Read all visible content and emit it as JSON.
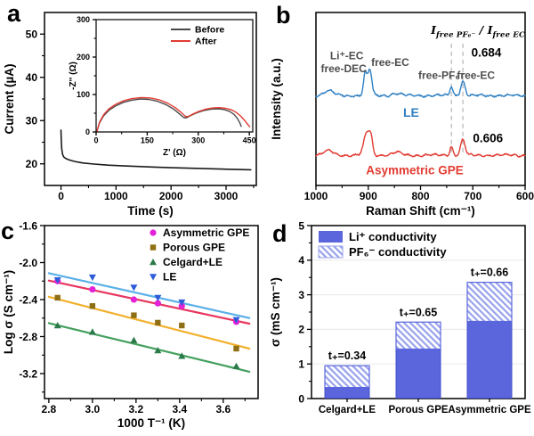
{
  "panels": {
    "a": {
      "letter": "a"
    },
    "b": {
      "letter": "b"
    },
    "c": {
      "letter": "c"
    },
    "d": {
      "letter": "d"
    }
  },
  "formula": {
    "i1": "I",
    "sub1": "free PF₆⁻",
    "sep": " / ",
    "i2": "I",
    "sub2": "free EC"
  },
  "colors": {
    "black_curve": "#1a1a1a",
    "before_gray": "#4a4a4a",
    "after_red": "#e23b32",
    "le_blue": "#2e7fc2",
    "gpe_red": "#e23b32",
    "bar_blue": "#5b66dd",
    "bar_edge": "#4450cc",
    "hatch_blue": "#98a2ec",
    "guide_gray": "#b5b5b5"
  },
  "chart_data": [
    {
      "id": "a",
      "type": "line",
      "xlabel": "Time (s)",
      "ylabel": "Current (µA)",
      "xlim": [
        -300,
        3550
      ],
      "ylim": [
        15,
        55
      ],
      "xticks": [
        "0",
        "1000",
        "2000",
        "3000"
      ],
      "xminor": [
        500,
        1500,
        2500,
        3500
      ],
      "yticks": [
        "20",
        "30",
        "40",
        "50"
      ],
      "yminor": [
        25,
        35,
        45
      ],
      "grid": false,
      "series": [
        {
          "name": "current",
          "color": "#1a1a1a",
          "points": [
            [
              0,
              27.8
            ],
            [
              6,
              25.2
            ],
            [
              14,
              23.4
            ],
            [
              28,
              22.2
            ],
            [
              50,
              21.6
            ],
            [
              90,
              21.2
            ],
            [
              150,
              20.9
            ],
            [
              250,
              20.55
            ],
            [
              400,
              20.2
            ],
            [
              600,
              19.95
            ],
            [
              850,
              19.7
            ],
            [
              1100,
              19.55
            ],
            [
              1400,
              19.4
            ],
            [
              1700,
              19.25
            ],
            [
              2000,
              19.1
            ],
            [
              2300,
              19.0
            ],
            [
              2600,
              18.9
            ],
            [
              2900,
              18.8
            ],
            [
              3200,
              18.7
            ],
            [
              3450,
              18.62
            ]
          ]
        }
      ]
    },
    {
      "id": "a_inset",
      "type": "line",
      "xlabel": "Z' (Ω)",
      "ylabel": "-Z'' (Ω)",
      "xlim": [
        0,
        460
      ],
      "ylim": [
        0,
        300
      ],
      "xticks": [
        "0",
        "150",
        "300",
        "450"
      ],
      "xminor": [
        75,
        225,
        375
      ],
      "yticks": [
        "0",
        "100",
        "200",
        "300"
      ],
      "yminor": [
        50,
        150,
        250
      ],
      "legend": [
        "Before",
        "After"
      ],
      "series": [
        {
          "name": "Before",
          "color": "#4a4a4a",
          "points": [
            [
              3,
              3
            ],
            [
              10,
              24
            ],
            [
              22,
              43
            ],
            [
              38,
              58
            ],
            [
              58,
              70
            ],
            [
              80,
              79
            ],
            [
              105,
              85
            ],
            [
              130,
              88
            ],
            [
              155,
              87
            ],
            [
              180,
              82
            ],
            [
              205,
              73
            ],
            [
              228,
              61
            ],
            [
              245,
              48
            ],
            [
              258,
              38
            ],
            [
              266,
              38
            ],
            [
              278,
              44
            ],
            [
              295,
              51
            ],
            [
              315,
              57
            ],
            [
              338,
              61
            ],
            [
              358,
              62
            ],
            [
              375,
              60
            ],
            [
              392,
              55
            ],
            [
              405,
              47
            ],
            [
              415,
              36
            ],
            [
              422,
              24
            ],
            [
              426,
              15
            ]
          ]
        },
        {
          "name": "After",
          "color": "#e23b32",
          "points": [
            [
              3,
              3
            ],
            [
              10,
              26
            ],
            [
              22,
              46
            ],
            [
              38,
              62
            ],
            [
              58,
              74
            ],
            [
              80,
              83
            ],
            [
              105,
              89
            ],
            [
              132,
              92
            ],
            [
              158,
              91
            ],
            [
              185,
              86
            ],
            [
              210,
              77
            ],
            [
              232,
              65
            ],
            [
              250,
              52
            ],
            [
              263,
              41
            ],
            [
              272,
              42
            ],
            [
              285,
              48
            ],
            [
              302,
              55
            ],
            [
              322,
              61
            ],
            [
              342,
              64
            ],
            [
              362,
              65
            ],
            [
              380,
              63
            ],
            [
              398,
              59
            ],
            [
              412,
              52
            ],
            [
              425,
              42
            ],
            [
              437,
              30
            ],
            [
              447,
              18
            ],
            [
              451,
              14
            ]
          ]
        }
      ]
    },
    {
      "id": "b",
      "type": "spectra",
      "xlabel": "Raman Shift (cm⁻¹)",
      "ylabel": "Intensity (a.u.)",
      "xlim": [
        1000,
        600
      ],
      "ylim": [
        0,
        1
      ],
      "xticks": [
        "1000",
        "900",
        "800",
        "700",
        "600"
      ],
      "xminor": [
        950,
        850,
        750,
        650
      ],
      "yticks": [],
      "yminor": [],
      "dashed_x": [
        741,
        719
      ],
      "series": [
        {
          "name": "LE",
          "color": "#2e7fc2",
          "baseline": 0.52,
          "noise": 0.012,
          "peaks": [
            [
              976,
              9,
              0.028
            ],
            [
              906,
              3.2,
              0.125
            ],
            [
              897,
              3.8,
              0.15
            ],
            [
              846,
              8,
              0.012
            ],
            [
              741,
              2.8,
              0.053
            ],
            [
              719,
              4.2,
              0.082
            ]
          ],
          "ratio_value": "0.684"
        },
        {
          "name": "Asymmetric GPE",
          "color": "#e23b32",
          "baseline": 0.175,
          "noise": 0.012,
          "peaks": [
            [
              976,
              9,
              0.024
            ],
            [
              903,
              5.5,
              0.125
            ],
            [
              895,
              3.5,
              0.085
            ],
            [
              845,
              8,
              0.016
            ],
            [
              741,
              2.8,
              0.051
            ],
            [
              719,
              4.2,
              0.09
            ]
          ],
          "ratio_value": "0.606"
        }
      ],
      "labels": [
        {
          "t": "Li⁺-EC",
          "x": 941,
          "y": 0.73,
          "c": "#4d4d4d",
          "fs": 12
        },
        {
          "t": "free-DEC",
          "x": 947,
          "y": 0.655,
          "c": "#4d4d4d",
          "fs": 12
        },
        {
          "t": "free-EC",
          "x": 858,
          "y": 0.69,
          "c": "#4d4d4d",
          "fs": 12
        },
        {
          "t": "free-PF₆⁻",
          "x": 759,
          "y": 0.615,
          "c": "#4d4d4d",
          "fs": 12
        },
        {
          "t": "free-EC",
          "x": 694,
          "y": 0.615,
          "c": "#4d4d4d",
          "fs": 12
        },
        {
          "t": "LE",
          "x": 818,
          "y": 0.397,
          "c": "#2e7fc2",
          "fs": 14
        },
        {
          "t": "0.684",
          "x": 674,
          "y": 0.745,
          "c": "#000000",
          "fs": 13.5
        },
        {
          "t": "0.606",
          "x": 671,
          "y": 0.25,
          "c": "#000000",
          "fs": 13.5
        },
        {
          "t": "Asymmetric GPE",
          "x": 811,
          "y": 0.065,
          "c": "#e23b32",
          "fs": 13.5
        }
      ]
    },
    {
      "id": "c",
      "type": "scatter",
      "xlabel": "1000 T⁻¹ (K)",
      "ylabel": "Log σ (S cm⁻¹)",
      "xlim": [
        2.78,
        3.76
      ],
      "ylim": [
        -3.47,
        -1.6
      ],
      "xticks": [
        "2.8",
        "3.0",
        "3.2",
        "3.4",
        "3.6"
      ],
      "xminor": [
        2.9,
        3.1,
        3.3,
        3.5,
        3.7
      ],
      "yticks": [
        "-1.6",
        "-2.0",
        "-2.4",
        "-2.8",
        "-3.2"
      ],
      "yminor": [
        -1.8,
        -2.2,
        -2.6,
        -3.0,
        -3.4
      ],
      "x": [
        2.84,
        3.0,
        3.19,
        3.3,
        3.41,
        3.66
      ],
      "legend_pos": "top-right",
      "series": [
        {
          "name": "Asymmetric GPE",
          "marker": "circle",
          "marker_color": "#e321d6",
          "line_color": "#e8355f",
          "values": [
            -2.2,
            -2.29,
            -2.4,
            -2.44,
            -2.47,
            -2.64
          ],
          "fit": [
            [
              2.8,
              -2.195
            ],
            [
              3.72,
              -2.66
            ]
          ]
        },
        {
          "name": "Porous GPE",
          "marker": "square",
          "marker_color": "#8f6f14",
          "line_color": "#f2b02c",
          "values": [
            -2.38,
            -2.47,
            -2.57,
            -2.65,
            -2.68,
            -2.93
          ],
          "fit": [
            [
              2.8,
              -2.37
            ],
            [
              3.72,
              -2.93
            ]
          ]
        },
        {
          "name": "Celgard+LE",
          "marker": "triangle-up",
          "marker_color": "#2a7a4a",
          "line_color": "#44a05e",
          "values": [
            -2.68,
            -2.75,
            -2.84,
            -2.95,
            -3.01,
            -3.12
          ],
          "fit": [
            [
              2.8,
              -2.655
            ],
            [
              3.72,
              -3.18
            ]
          ]
        },
        {
          "name": "LE",
          "marker": "triangle-down",
          "marker_color": "#2e5bd7",
          "line_color": "#5ab0e8",
          "values": [
            -2.19,
            -2.16,
            -2.27,
            -2.38,
            -2.43,
            -2.62
          ],
          "fit": [
            [
              2.8,
              -2.115
            ],
            [
              3.72,
              -2.6
            ]
          ]
        }
      ]
    },
    {
      "id": "d",
      "type": "bar-stacked",
      "ylabel": "σ (mS cm⁻¹)",
      "categories": [
        "Celgard+LE",
        "Porous GPE",
        "Asymmetric GPE"
      ],
      "ylim": [
        0,
        5
      ],
      "yticks": [
        "0",
        "1",
        "2",
        "3",
        "4",
        "5"
      ],
      "yminor": [
        0.5,
        1.5,
        2.5,
        3.5,
        4.5
      ],
      "grid": [
        1,
        2,
        3,
        4
      ],
      "series": [
        {
          "name": "Li⁺ conductivity",
          "style": "solid",
          "values": [
            0.32,
            1.43,
            2.23
          ]
        },
        {
          "name": "PF₆⁻ conductivity",
          "style": "hatched",
          "values": [
            0.63,
            0.78,
            1.13
          ]
        }
      ],
      "totals": [
        0.95,
        2.21,
        3.36
      ],
      "bar_labels": [
        "t₊=0.34",
        "t₊=0.65",
        "t₊=0.66"
      ]
    }
  ]
}
